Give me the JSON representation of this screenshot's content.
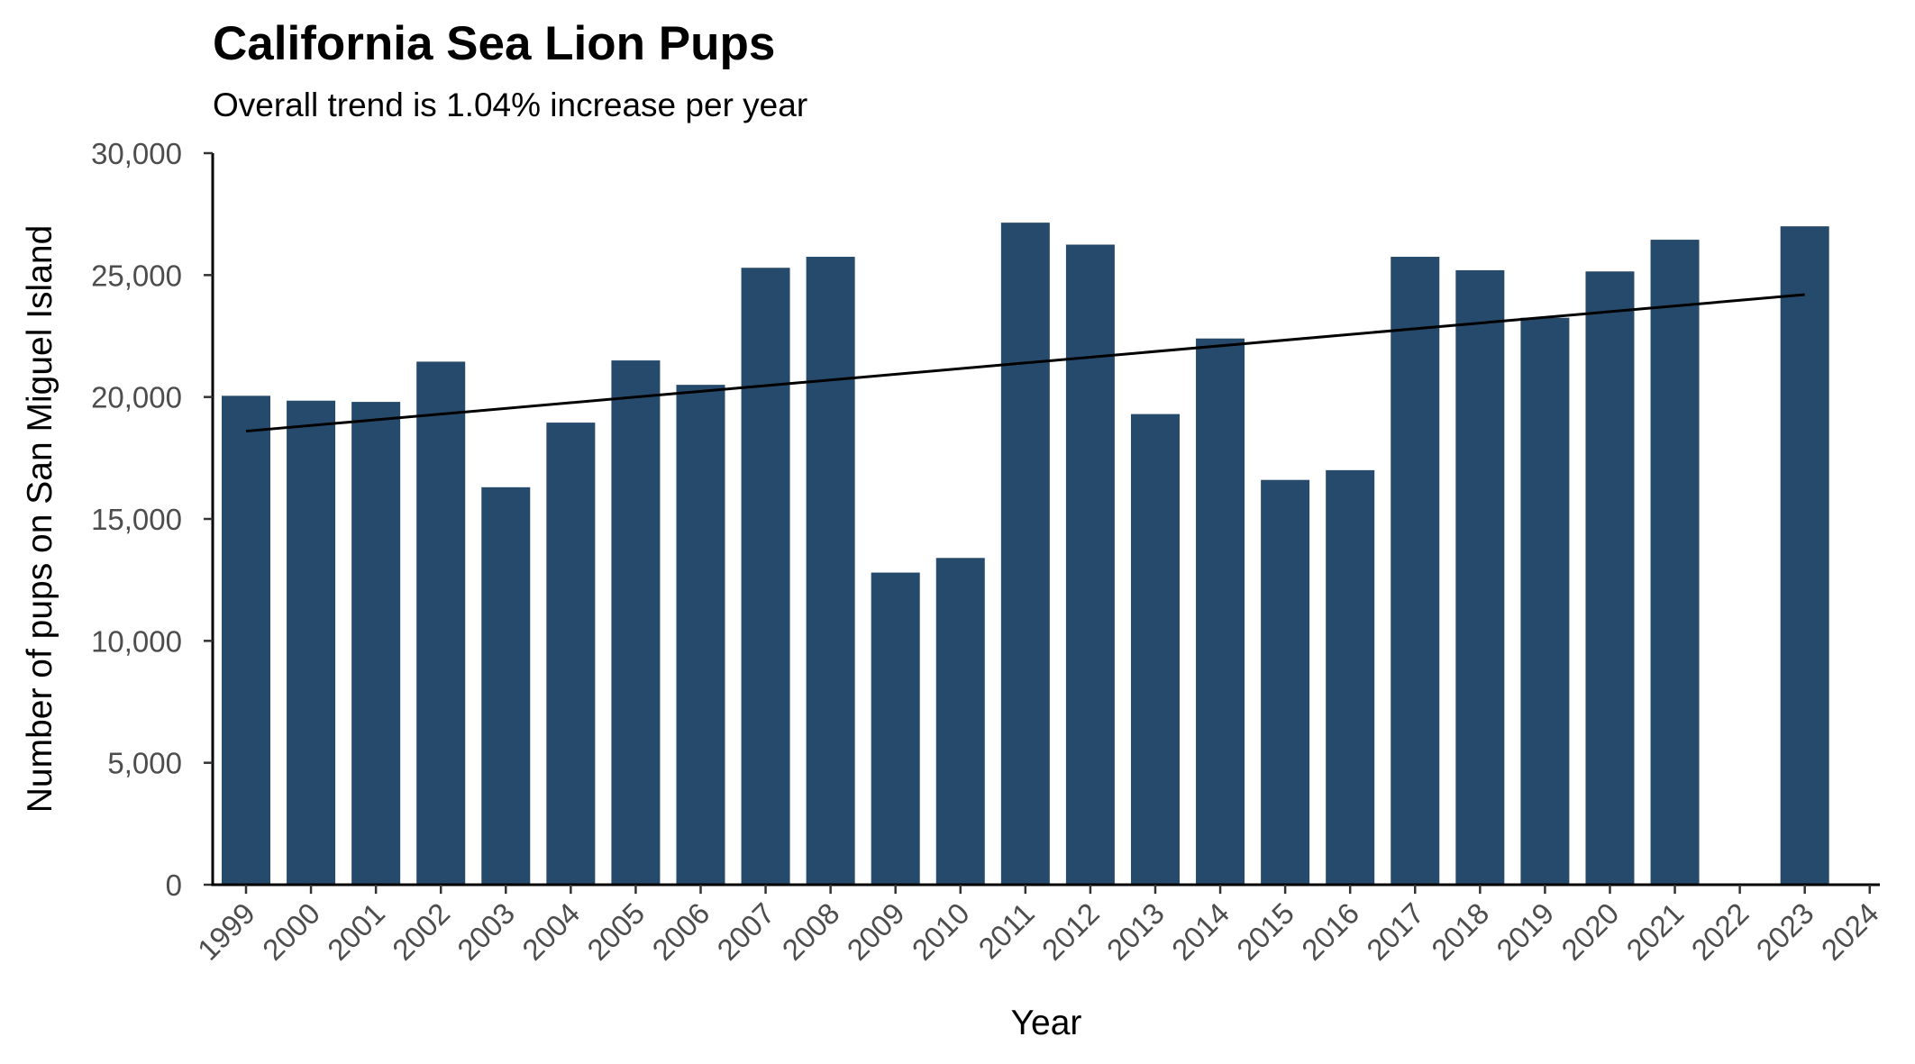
{
  "chart_data": {
    "type": "bar",
    "title": "California Sea Lion Pups",
    "subtitle": "Overall trend is 1.04% increase per year",
    "xlabel": "Year",
    "ylabel": "Number of pups on San Miguel Island",
    "ylim": [
      0,
      30000
    ],
    "yticks": [
      0,
      5000,
      10000,
      15000,
      20000,
      25000,
      30000
    ],
    "ytick_labels": [
      "0",
      "5,000",
      "10,000",
      "15,000",
      "20,000",
      "25,000",
      "30,000"
    ],
    "categories": [
      "1999",
      "2000",
      "2001",
      "2002",
      "2003",
      "2004",
      "2005",
      "2006",
      "2007",
      "2008",
      "2009",
      "2010",
      "2011",
      "2012",
      "2013",
      "2014",
      "2015",
      "2016",
      "2017",
      "2018",
      "2019",
      "2020",
      "2021",
      "2022",
      "2023",
      "2024"
    ],
    "values": [
      20050,
      19850,
      19800,
      21450,
      16300,
      18950,
      21500,
      20500,
      25300,
      25750,
      12800,
      13400,
      27150,
      26250,
      19300,
      22400,
      16600,
      17000,
      25750,
      25200,
      23250,
      25150,
      26450,
      null,
      27000,
      null
    ],
    "bar_color": "#264A6C",
    "trend": {
      "start_year": "1999",
      "start_value": 18600,
      "end_year": "2023",
      "end_value": 24200
    },
    "grid": false
  }
}
